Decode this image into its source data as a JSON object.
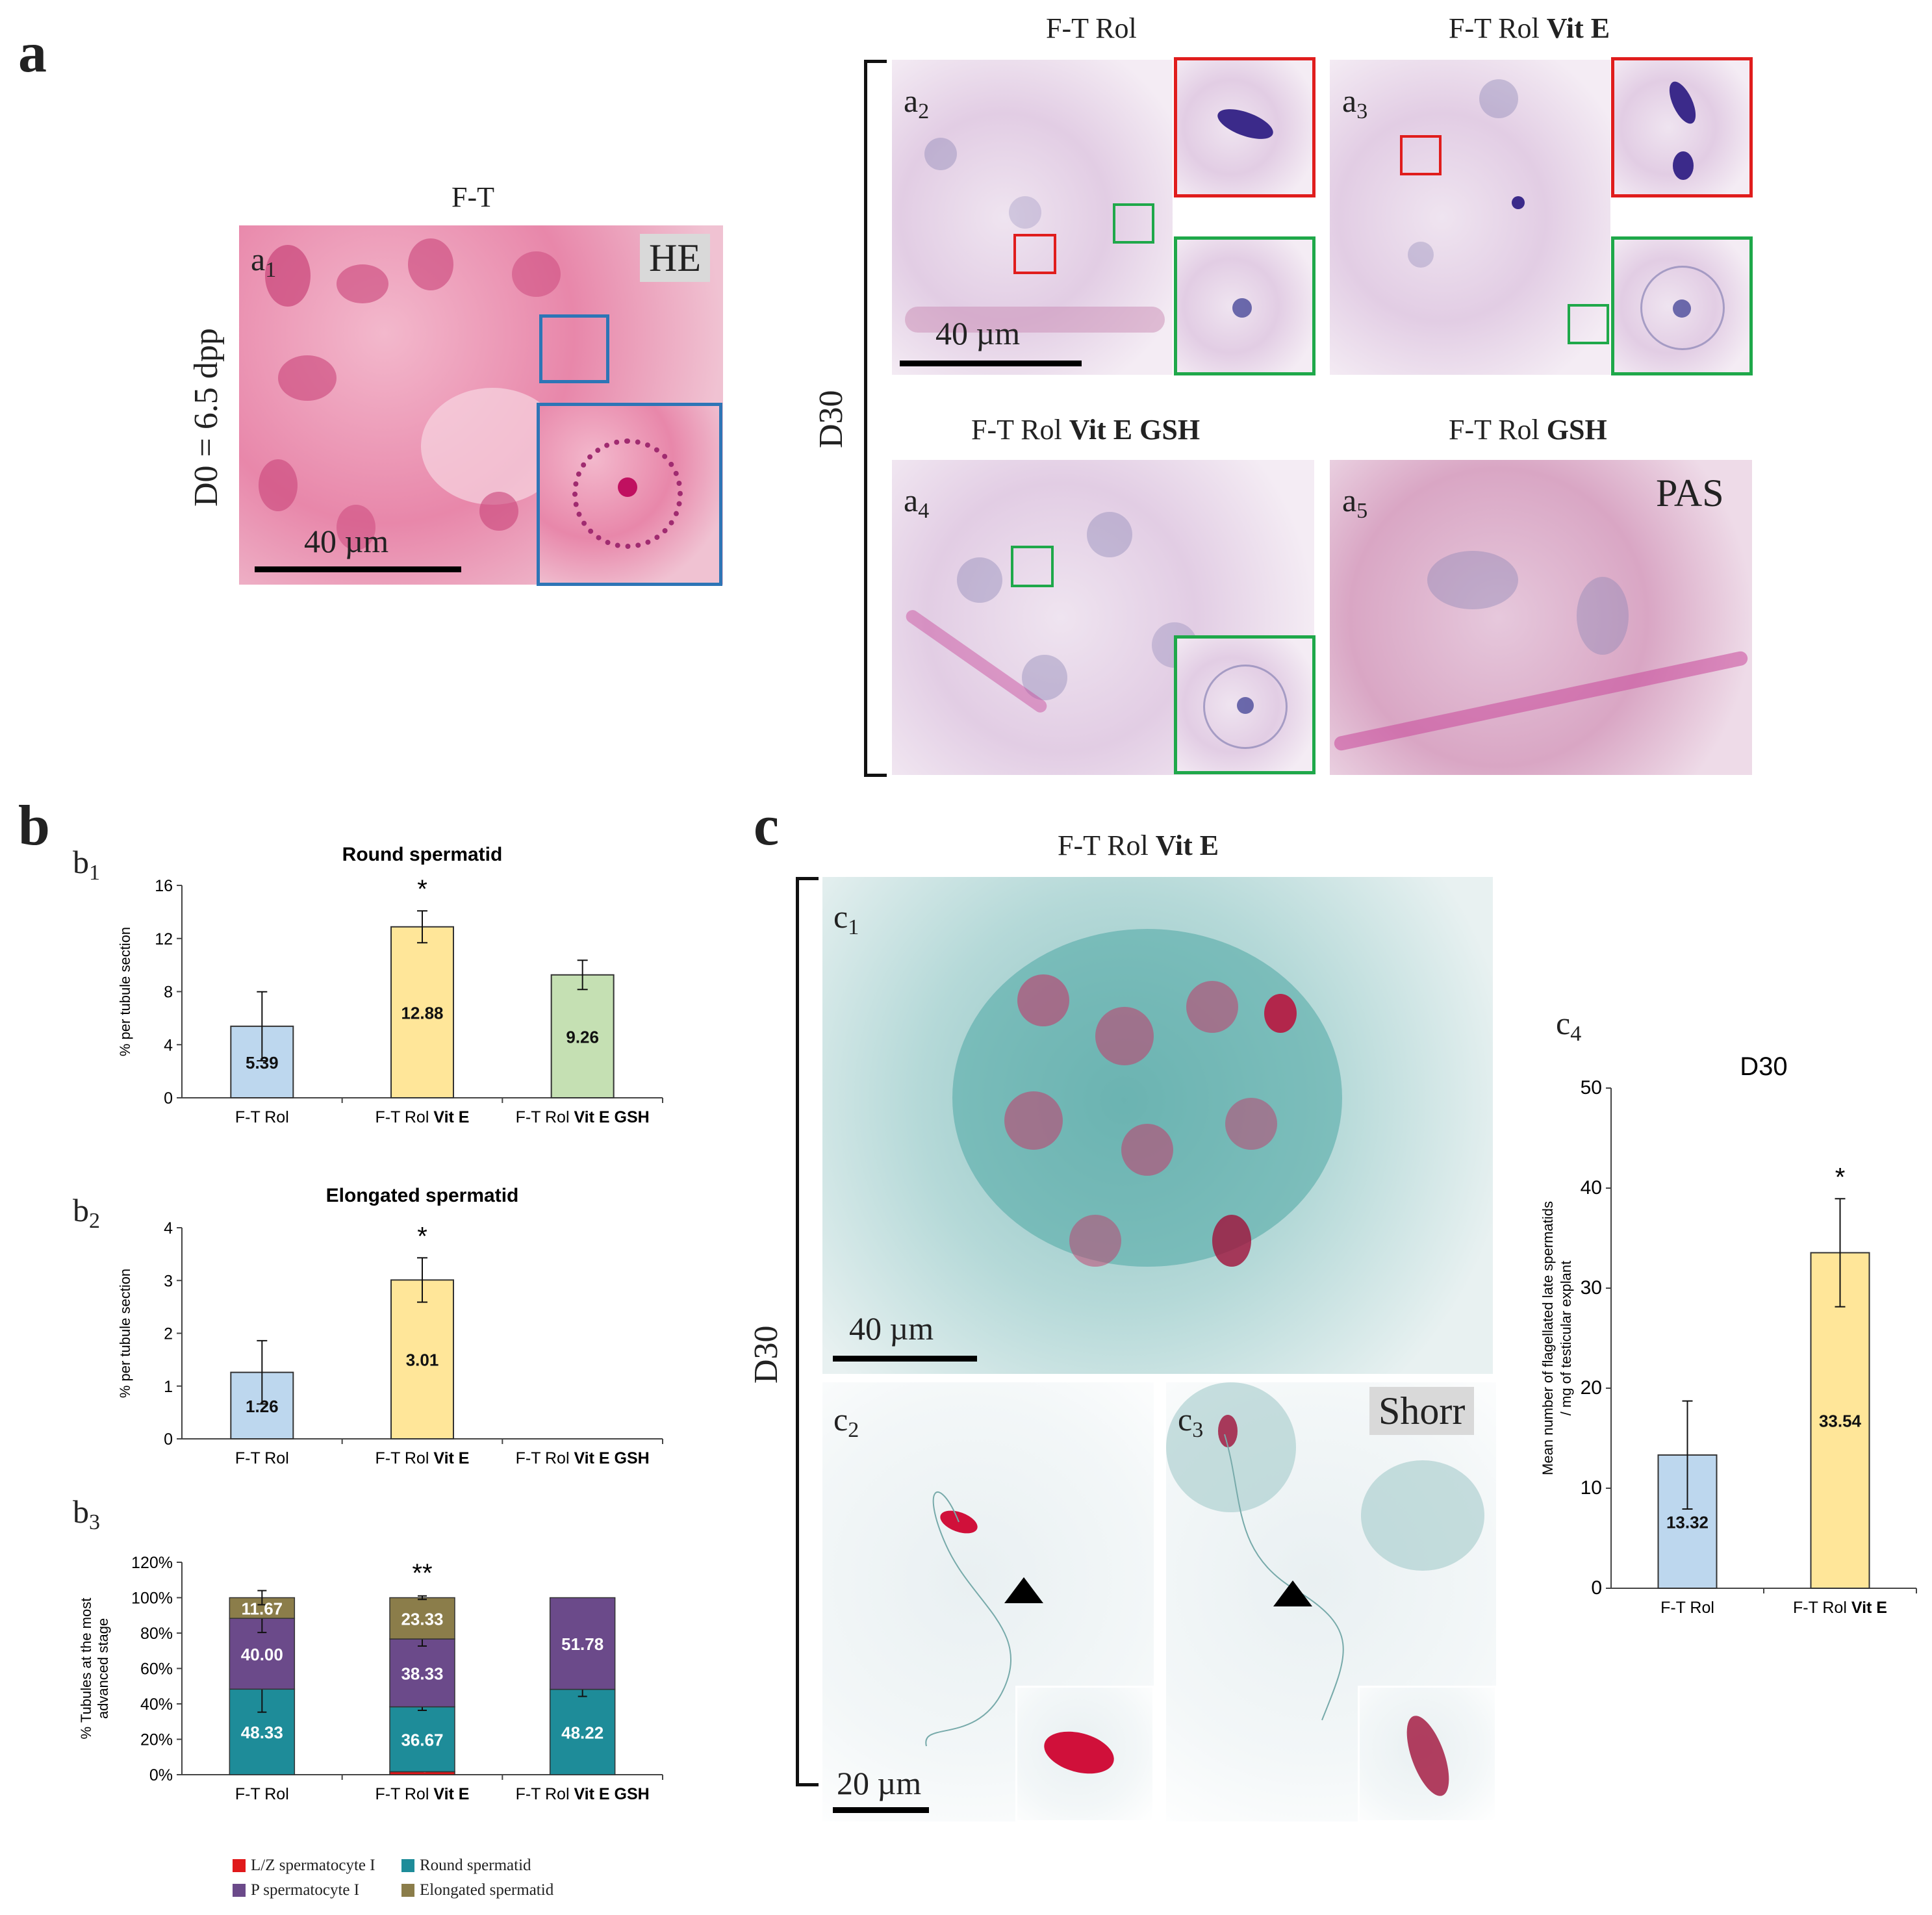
{
  "panel_labels": {
    "a": "a",
    "b": "b",
    "c": "c"
  },
  "panel_a": {
    "a1": {
      "label": "a",
      "sub": "1",
      "title": "F-T",
      "stain": "HE",
      "side_label": "D0 = 6.5 dpp",
      "scale": "40 µm"
    },
    "d30_label": "D30",
    "a2": {
      "label": "a",
      "sub": "2",
      "title": "F-T Rol",
      "scale": "40 µm"
    },
    "a3": {
      "label": "a",
      "sub": "3",
      "title_plain": "F-T Rol ",
      "title_bold": "Vit E"
    },
    "a4": {
      "label": "a",
      "sub": "4",
      "title_plain": "F-T Rol ",
      "title_bold": "Vit E GSH"
    },
    "a5": {
      "label": "a",
      "sub": "5",
      "title_plain": "F-T Rol ",
      "title_bold": "GSH",
      "stain": "PAS"
    }
  },
  "panel_b": {
    "b1": {
      "label": "b",
      "sub": "1"
    },
    "b2": {
      "label": "b",
      "sub": "2"
    },
    "b3": {
      "label": "b",
      "sub": "3"
    }
  },
  "panel_c": {
    "title_plain": "F-T Rol ",
    "title_bold": "Vit E",
    "d30_label": "D30",
    "c1": {
      "label": "c",
      "sub": "1",
      "scale": "40 µm"
    },
    "c2": {
      "label": "c",
      "sub": "2",
      "scale": "20 µm"
    },
    "c3": {
      "label": "c",
      "sub": "3",
      "stain": "Shorr"
    },
    "c4": {
      "label": "c",
      "sub": "4"
    }
  },
  "colors": {
    "blue": "#bdd7ee",
    "yellow": "#ffe699",
    "green": "#c5e0b3",
    "lz": "#e0191b",
    "p": "#6b4a8a",
    "round": "#1e8c99",
    "elong": "#8b7d4a"
  },
  "chart_data": [
    {
      "id": "b1",
      "type": "bar",
      "title": "Round spermatid",
      "ylabel": "% per tubule section",
      "categories": [
        {
          "plain": "F-T Rol",
          "bold": ""
        },
        {
          "plain": "F-T Rol ",
          "bold": "Vit E"
        },
        {
          "plain": "F-T Rol ",
          "bold": "Vit E GSH"
        }
      ],
      "values": [
        5.39,
        12.88,
        9.26
      ],
      "errors": [
        2.6,
        1.2,
        1.1
      ],
      "labels": [
        "5.39",
        "12.88",
        "9.26"
      ],
      "significance": [
        "",
        "*",
        ""
      ],
      "ylim": [
        0,
        16
      ],
      "yticks": [
        "0",
        "4",
        "8",
        "12",
        "16"
      ],
      "bar_colors": [
        "#bdd7ee",
        "#ffe699",
        "#c5e0b3"
      ]
    },
    {
      "id": "b2",
      "type": "bar",
      "title": "Elongated spermatid",
      "ylabel": "% per tubule section",
      "categories": [
        {
          "plain": "F-T Rol",
          "bold": ""
        },
        {
          "plain": "F-T Rol ",
          "bold": "Vit E"
        },
        {
          "plain": "F-T Rol ",
          "bold": "Vit E GSH"
        }
      ],
      "values": [
        1.26,
        3.01,
        0
      ],
      "errors": [
        0.6,
        0.42,
        0
      ],
      "labels": [
        "1.26",
        "3.01",
        ""
      ],
      "significance": [
        "",
        "*",
        ""
      ],
      "ylim": [
        0,
        4
      ],
      "yticks": [
        "0",
        "1",
        "2",
        "3",
        "4"
      ],
      "bar_colors": [
        "#bdd7ee",
        "#ffe699",
        "#c5e0b3"
      ]
    },
    {
      "id": "b3",
      "type": "bar",
      "stacked": true,
      "ylabel_lines": [
        "% Tubules at the most",
        "advanced stage"
      ],
      "categories": [
        {
          "plain": "F-T Rol",
          "bold": ""
        },
        {
          "plain": "F-T Rol ",
          "bold": "Vit E"
        },
        {
          "plain": "F-T Rol ",
          "bold": "Vit E GSH"
        }
      ],
      "ylim": [
        0,
        120
      ],
      "yticks": [
        "0%",
        "20%",
        "40%",
        "60%",
        "80%",
        "100%",
        "120%"
      ],
      "significance": [
        "",
        "**",
        ""
      ],
      "series": [
        {
          "name": "L/Z spermatocyte I",
          "color": "#e0191b",
          "values": [
            0,
            1.67,
            0
          ],
          "labels": [
            "",
            "1.67",
            ""
          ],
          "errors": [
            0,
            0,
            0
          ]
        },
        {
          "name": "Round spermatid",
          "color": "#1e8c99",
          "values": [
            48.33,
            36.67,
            48.22
          ],
          "labels": [
            "48.33",
            "36.67",
            "48.22"
          ],
          "errors": [
            13,
            2,
            4
          ]
        },
        {
          "name": "P spermatocyte I",
          "color": "#6b4a8a",
          "values": [
            40.0,
            38.33,
            51.78
          ],
          "labels": [
            "40.00",
            "38.33",
            "51.78"
          ],
          "errors": [
            8,
            4,
            0
          ]
        },
        {
          "name": "Elongated spermatid",
          "color": "#8b7d4a",
          "values": [
            11.67,
            23.33,
            0
          ],
          "labels": [
            "11.67",
            "23.33",
            ""
          ],
          "errors": [
            4,
            1,
            4
          ]
        }
      ],
      "legend": [
        "L/Z spermatocyte I",
        "Round spermatid",
        "P spermatocyte I",
        "Elongated spermatid"
      ]
    },
    {
      "id": "c4",
      "type": "bar",
      "title": "D30",
      "ylabel_lines": [
        "Mean number of flagellated late spermatids",
        "/ mg of testicular explant"
      ],
      "categories": [
        {
          "plain": "F-T Rol",
          "bold": ""
        },
        {
          "plain": "F-T Rol ",
          "bold": "Vit E"
        }
      ],
      "values": [
        13.32,
        33.54
      ],
      "errors": [
        5.4,
        5.4
      ],
      "labels": [
        "13.32",
        "33.54"
      ],
      "significance": [
        "",
        "*"
      ],
      "ylim": [
        0,
        50
      ],
      "yticks": [
        "0",
        "10",
        "20",
        "30",
        "40",
        "50"
      ],
      "bar_colors": [
        "#bdd7ee",
        "#ffe699"
      ]
    }
  ]
}
